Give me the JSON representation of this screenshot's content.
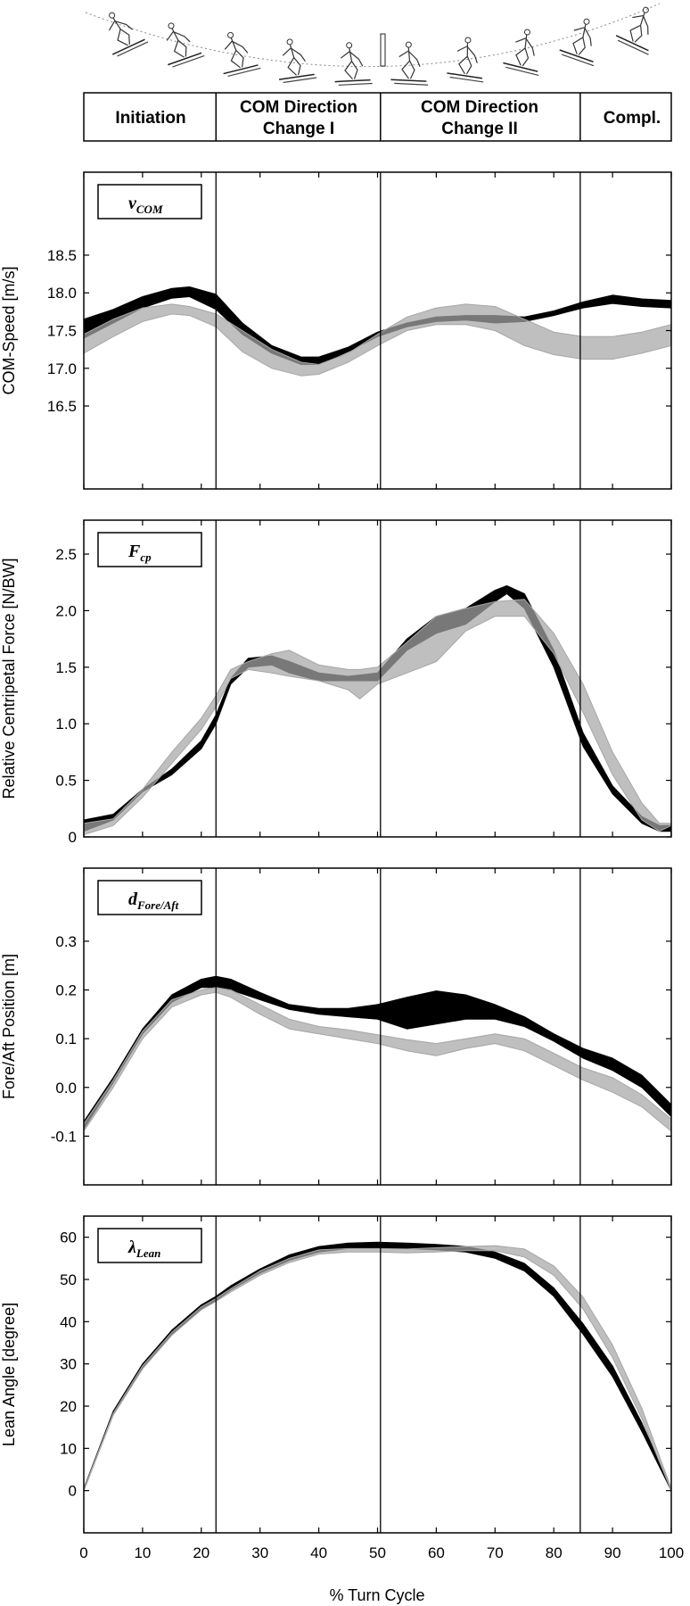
{
  "phases": [
    {
      "label_lines": [
        "Initiation"
      ],
      "start": 0,
      "end": 22.5
    },
    {
      "label_lines": [
        "COM Direction",
        "Change I"
      ],
      "start": 22.5,
      "end": 50.5
    },
    {
      "label_lines": [
        "COM Direction",
        "Change II"
      ],
      "start": 50.5,
      "end": 84.5
    },
    {
      "label_lines": [
        "Compl."
      ],
      "start": 84.5,
      "end": 100
    }
  ],
  "phase_boundaries": [
    22.5,
    50.5,
    84.5
  ],
  "xaxis": {
    "label": "% Turn Cycle",
    "ticks": [
      "0",
      "10",
      "20",
      "30",
      "40",
      "50",
      "60",
      "70",
      "80",
      "90",
      "100"
    ],
    "xlim": [
      0,
      100
    ]
  },
  "colors": {
    "series_a": "#000000",
    "series_b": "#a6a6a6",
    "overlap": "#555555",
    "frame": "#000000"
  },
  "illustration": {
    "description_icon": "skier-stick-figure-sequence",
    "skier_count": 10
  },
  "chart_data": [
    {
      "type": "area",
      "legend_main": "v",
      "legend_sub": "COM",
      "ylabel": "COM-Speed [m/s]",
      "ylim": [
        15.4,
        19.6
      ],
      "yticks": [
        "16.5",
        "17.0",
        "17.5",
        "18.0",
        "18.5"
      ],
      "grid": false,
      "series": [
        {
          "color": "#000000",
          "x": [
            0,
            5,
            10,
            15,
            18,
            22.5,
            27,
            32,
            37,
            40,
            45,
            50,
            55,
            60,
            65,
            70,
            75,
            80,
            85,
            90,
            95,
            100
          ],
          "lower": [
            17.4,
            17.6,
            17.8,
            17.93,
            17.95,
            17.78,
            17.45,
            17.2,
            17.05,
            17.05,
            17.22,
            17.42,
            17.55,
            17.62,
            17.64,
            17.6,
            17.62,
            17.7,
            17.8,
            17.86,
            17.82,
            17.8
          ],
          "upper": [
            17.65,
            17.78,
            17.95,
            18.06,
            18.08,
            17.98,
            17.6,
            17.3,
            17.15,
            17.15,
            17.28,
            17.48,
            17.6,
            17.68,
            17.7,
            17.7,
            17.68,
            17.76,
            17.88,
            17.97,
            17.92,
            17.9
          ]
        },
        {
          "color": "#a6a6a6",
          "x": [
            0,
            5,
            10,
            15,
            18,
            22.5,
            27,
            32,
            37,
            40,
            45,
            50,
            55,
            60,
            65,
            70,
            75,
            80,
            85,
            90,
            95,
            100
          ],
          "lower": [
            17.2,
            17.42,
            17.62,
            17.72,
            17.7,
            17.55,
            17.22,
            17.0,
            16.9,
            16.92,
            17.08,
            17.3,
            17.5,
            17.58,
            17.58,
            17.5,
            17.3,
            17.18,
            17.12,
            17.12,
            17.2,
            17.3
          ],
          "upper": [
            17.45,
            17.65,
            17.8,
            17.85,
            17.82,
            17.72,
            17.5,
            17.25,
            17.08,
            17.05,
            17.2,
            17.45,
            17.68,
            17.8,
            17.85,
            17.82,
            17.65,
            17.48,
            17.42,
            17.42,
            17.48,
            17.58
          ]
        }
      ]
    },
    {
      "type": "area",
      "legend_main": "F",
      "legend_sub": "cp",
      "ylabel": "Relative Centripetal Force [N/BW]",
      "ylim": [
        0,
        2.8
      ],
      "yticks": [
        "0",
        "0.5",
        "1.0",
        "1.5",
        "2.0",
        "2.5"
      ],
      "grid": false,
      "series": [
        {
          "color": "#000000",
          "x": [
            0,
            5,
            10,
            15,
            20,
            22.5,
            25,
            28,
            32,
            35,
            40,
            45,
            50,
            55,
            60,
            65,
            70,
            72,
            75,
            80,
            85,
            90,
            95,
            98,
            100
          ],
          "lower": [
            0.05,
            0.15,
            0.4,
            0.55,
            0.78,
            1.0,
            1.35,
            1.5,
            1.52,
            1.45,
            1.38,
            1.38,
            1.38,
            1.65,
            1.8,
            1.88,
            2.08,
            2.15,
            2.02,
            1.5,
            0.8,
            0.38,
            0.12,
            0.05,
            0.05
          ],
          "upper": [
            0.15,
            0.2,
            0.42,
            0.6,
            0.85,
            1.08,
            1.4,
            1.58,
            1.6,
            1.55,
            1.45,
            1.42,
            1.45,
            1.75,
            1.95,
            2.02,
            2.18,
            2.22,
            2.15,
            1.65,
            0.92,
            0.45,
            0.18,
            0.1,
            0.1
          ]
        },
        {
          "color": "#a6a6a6",
          "x": [
            0,
            5,
            10,
            15,
            20,
            22.5,
            25,
            28,
            32,
            35,
            40,
            45,
            47,
            50,
            55,
            60,
            65,
            70,
            75,
            80,
            85,
            90,
            95,
            98,
            100
          ],
          "lower": [
            0.02,
            0.1,
            0.35,
            0.65,
            0.95,
            1.15,
            1.4,
            1.48,
            1.45,
            1.42,
            1.38,
            1.3,
            1.22,
            1.35,
            1.45,
            1.55,
            1.82,
            1.95,
            1.95,
            1.62,
            1.1,
            0.55,
            0.15,
            0.05,
            0.1
          ],
          "upper": [
            0.12,
            0.16,
            0.42,
            0.75,
            1.05,
            1.25,
            1.48,
            1.55,
            1.62,
            1.65,
            1.52,
            1.48,
            1.48,
            1.5,
            1.72,
            1.95,
            2.02,
            2.08,
            2.1,
            1.8,
            1.35,
            0.75,
            0.3,
            0.12,
            0.12
          ]
        }
      ]
    },
    {
      "type": "area",
      "legend_main": "d",
      "legend_sub": "Fore/Aft",
      "ylabel": "Fore/Aft Position [m]",
      "ylim": [
        -0.2,
        0.45
      ],
      "yticks": [
        "-0.1",
        "0.0",
        "0.1",
        "0.2",
        "0.3"
      ],
      "grid": false,
      "series": [
        {
          "color": "#000000",
          "x": [
            0,
            5,
            10,
            15,
            20,
            22.5,
            25,
            30,
            35,
            40,
            45,
            50,
            55,
            60,
            65,
            70,
            75,
            80,
            85,
            90,
            95,
            100
          ],
          "lower": [
            -0.085,
            0.01,
            0.11,
            0.175,
            0.205,
            0.205,
            0.2,
            0.18,
            0.16,
            0.15,
            0.145,
            0.14,
            0.12,
            0.13,
            0.14,
            0.14,
            0.125,
            0.095,
            0.06,
            0.035,
            0.0,
            -0.06
          ],
          "upper": [
            -0.07,
            0.02,
            0.12,
            0.19,
            0.222,
            0.228,
            0.222,
            0.195,
            0.17,
            0.162,
            0.162,
            0.17,
            0.185,
            0.198,
            0.19,
            0.17,
            0.145,
            0.11,
            0.08,
            0.06,
            0.025,
            -0.035
          ]
        },
        {
          "color": "#a6a6a6",
          "x": [
            0,
            5,
            10,
            15,
            20,
            22.5,
            25,
            30,
            35,
            40,
            45,
            50,
            55,
            60,
            65,
            70,
            75,
            80,
            85,
            90,
            95,
            100
          ],
          "lower": [
            -0.09,
            0.0,
            0.1,
            0.165,
            0.19,
            0.195,
            0.185,
            0.15,
            0.12,
            0.11,
            0.1,
            0.09,
            0.075,
            0.065,
            0.08,
            0.09,
            0.075,
            0.045,
            0.015,
            -0.01,
            -0.04,
            -0.09
          ],
          "upper": [
            -0.075,
            0.015,
            0.115,
            0.18,
            0.2,
            0.205,
            0.2,
            0.17,
            0.14,
            0.125,
            0.118,
            0.108,
            0.098,
            0.09,
            0.1,
            0.11,
            0.1,
            0.07,
            0.04,
            0.02,
            -0.015,
            -0.065
          ]
        }
      ]
    },
    {
      "type": "area",
      "legend_main": "λ",
      "legend_sub": "Lean",
      "ylabel": "Lean Angle [degree]",
      "ylim": [
        -10,
        65
      ],
      "yticks": [
        "0",
        "10",
        "20",
        "30",
        "40",
        "50",
        "60"
      ],
      "grid": false,
      "series": [
        {
          "color": "#000000",
          "x": [
            0,
            5,
            10,
            15,
            20,
            22.5,
            25,
            30,
            35,
            40,
            45,
            50,
            55,
            60,
            65,
            70,
            75,
            80,
            85,
            90,
            95,
            100
          ],
          "lower": [
            0,
            18,
            29,
            37,
            43,
            45,
            47.5,
            51.5,
            54.5,
            56.5,
            57.3,
            57.5,
            57.3,
            57.0,
            56.5,
            55.0,
            52.0,
            46.0,
            37.0,
            27.0,
            14.0,
            0
          ],
          "upper": [
            0.5,
            18.8,
            30,
            38,
            44,
            46,
            48.5,
            52.5,
            55.8,
            57.8,
            58.6,
            58.8,
            58.6,
            58.3,
            57.8,
            56.5,
            53.8,
            48.0,
            39.5,
            29.5,
            16.0,
            0.5
          ]
        },
        {
          "color": "#a6a6a6",
          "x": [
            0,
            5,
            10,
            15,
            20,
            22.5,
            25,
            30,
            35,
            40,
            45,
            50,
            55,
            60,
            65,
            70,
            75,
            80,
            85,
            90,
            95,
            100
          ],
          "lower": [
            0,
            17.8,
            28.8,
            36.8,
            42.8,
            44.8,
            47,
            51,
            54,
            56,
            56.5,
            56.5,
            56.3,
            56.5,
            56.8,
            56.8,
            55.3,
            51.0,
            43.0,
            31.5,
            17.0,
            0
          ],
          "upper": [
            0.3,
            18.3,
            29.5,
            37.5,
            43.5,
            45.5,
            47.8,
            52,
            55,
            57,
            57.3,
            57.3,
            57.2,
            57.5,
            57.8,
            58.0,
            57.2,
            53.2,
            45.8,
            34.5,
            19.5,
            0.5
          ]
        }
      ]
    }
  ]
}
